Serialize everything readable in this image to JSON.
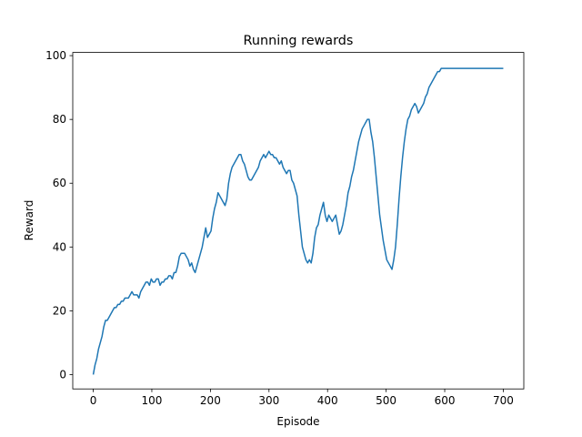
{
  "chart_data": {
    "type": "line",
    "title": "Running rewards",
    "xlabel": "Episode",
    "ylabel": "Reward",
    "xlim": [
      -35,
      735
    ],
    "ylim": [
      -4.5,
      101
    ],
    "xticks": [
      0,
      100,
      200,
      300,
      400,
      500,
      600,
      700
    ],
    "yticks": [
      0,
      20,
      40,
      60,
      80,
      100
    ],
    "grid": false,
    "legend": "none",
    "color": "#1f77b4",
    "series": [
      {
        "points": [
          [
            0,
            0
          ],
          [
            3,
            3
          ],
          [
            6,
            5
          ],
          [
            9,
            8
          ],
          [
            12,
            10
          ],
          [
            15,
            12
          ],
          [
            18,
            15
          ],
          [
            21,
            17
          ],
          [
            24,
            17
          ],
          [
            27,
            18
          ],
          [
            30,
            19
          ],
          [
            33,
            20
          ],
          [
            36,
            21
          ],
          [
            39,
            21
          ],
          [
            42,
            22
          ],
          [
            45,
            22
          ],
          [
            48,
            23
          ],
          [
            51,
            23
          ],
          [
            54,
            24
          ],
          [
            57,
            24
          ],
          [
            60,
            24
          ],
          [
            63,
            25
          ],
          [
            66,
            26
          ],
          [
            69,
            25
          ],
          [
            72,
            25
          ],
          [
            75,
            25
          ],
          [
            78,
            24
          ],
          [
            81,
            26
          ],
          [
            84,
            27
          ],
          [
            87,
            28
          ],
          [
            90,
            29
          ],
          [
            93,
            29
          ],
          [
            96,
            28
          ],
          [
            99,
            30
          ],
          [
            102,
            29
          ],
          [
            105,
            29
          ],
          [
            108,
            30
          ],
          [
            111,
            30
          ],
          [
            114,
            28
          ],
          [
            117,
            29
          ],
          [
            120,
            29
          ],
          [
            123,
            30
          ],
          [
            126,
            30
          ],
          [
            129,
            31
          ],
          [
            132,
            31
          ],
          [
            135,
            30
          ],
          [
            138,
            32
          ],
          [
            141,
            32
          ],
          [
            144,
            34
          ],
          [
            147,
            37
          ],
          [
            150,
            38
          ],
          [
            153,
            38
          ],
          [
            156,
            38
          ],
          [
            159,
            37
          ],
          [
            162,
            36
          ],
          [
            165,
            34
          ],
          [
            168,
            35
          ],
          [
            171,
            33
          ],
          [
            174,
            32
          ],
          [
            177,
            34
          ],
          [
            180,
            36
          ],
          [
            183,
            38
          ],
          [
            186,
            40
          ],
          [
            189,
            43
          ],
          [
            192,
            46
          ],
          [
            195,
            43
          ],
          [
            198,
            44
          ],
          [
            201,
            45
          ],
          [
            204,
            49
          ],
          [
            207,
            52
          ],
          [
            210,
            54
          ],
          [
            213,
            57
          ],
          [
            216,
            56
          ],
          [
            219,
            55
          ],
          [
            222,
            54
          ],
          [
            225,
            53
          ],
          [
            228,
            55
          ],
          [
            231,
            60
          ],
          [
            234,
            63
          ],
          [
            237,
            65
          ],
          [
            240,
            66
          ],
          [
            243,
            67
          ],
          [
            246,
            68
          ],
          [
            249,
            69
          ],
          [
            252,
            69
          ],
          [
            255,
            67
          ],
          [
            258,
            66
          ],
          [
            261,
            64
          ],
          [
            264,
            62
          ],
          [
            267,
            61
          ],
          [
            270,
            61
          ],
          [
            273,
            62
          ],
          [
            276,
            63
          ],
          [
            279,
            64
          ],
          [
            282,
            65
          ],
          [
            285,
            67
          ],
          [
            288,
            68
          ],
          [
            291,
            69
          ],
          [
            294,
            68
          ],
          [
            297,
            69
          ],
          [
            300,
            70
          ],
          [
            303,
            69
          ],
          [
            306,
            69
          ],
          [
            309,
            68
          ],
          [
            312,
            68
          ],
          [
            315,
            67
          ],
          [
            318,
            66
          ],
          [
            321,
            67
          ],
          [
            324,
            65
          ],
          [
            327,
            64
          ],
          [
            330,
            63
          ],
          [
            333,
            64
          ],
          [
            336,
            64
          ],
          [
            339,
            61
          ],
          [
            342,
            60
          ],
          [
            345,
            58
          ],
          [
            348,
            56
          ],
          [
            351,
            50
          ],
          [
            354,
            45
          ],
          [
            357,
            40
          ],
          [
            360,
            38
          ],
          [
            363,
            36
          ],
          [
            366,
            35
          ],
          [
            369,
            36
          ],
          [
            372,
            35
          ],
          [
            375,
            38
          ],
          [
            378,
            43
          ],
          [
            381,
            46
          ],
          [
            384,
            47
          ],
          [
            387,
            50
          ],
          [
            390,
            52
          ],
          [
            393,
            54
          ],
          [
            396,
            50
          ],
          [
            399,
            48
          ],
          [
            402,
            50
          ],
          [
            405,
            49
          ],
          [
            408,
            48
          ],
          [
            411,
            49
          ],
          [
            414,
            50
          ],
          [
            417,
            47
          ],
          [
            420,
            44
          ],
          [
            423,
            45
          ],
          [
            426,
            47
          ],
          [
            429,
            50
          ],
          [
            432,
            53
          ],
          [
            435,
            57
          ],
          [
            438,
            59
          ],
          [
            441,
            62
          ],
          [
            444,
            64
          ],
          [
            447,
            67
          ],
          [
            450,
            70
          ],
          [
            453,
            73
          ],
          [
            456,
            75
          ],
          [
            459,
            77
          ],
          [
            462,
            78
          ],
          [
            465,
            79
          ],
          [
            468,
            80
          ],
          [
            471,
            80
          ],
          [
            474,
            76
          ],
          [
            477,
            73
          ],
          [
            480,
            68
          ],
          [
            483,
            62
          ],
          [
            486,
            56
          ],
          [
            489,
            50
          ],
          [
            492,
            46
          ],
          [
            495,
            42
          ],
          [
            498,
            39
          ],
          [
            501,
            36
          ],
          [
            504,
            35
          ],
          [
            507,
            34
          ],
          [
            510,
            33
          ],
          [
            513,
            36
          ],
          [
            516,
            40
          ],
          [
            519,
            47
          ],
          [
            522,
            55
          ],
          [
            525,
            62
          ],
          [
            528,
            68
          ],
          [
            531,
            73
          ],
          [
            534,
            77
          ],
          [
            537,
            80
          ],
          [
            540,
            81
          ],
          [
            543,
            83
          ],
          [
            546,
            84
          ],
          [
            549,
            85
          ],
          [
            552,
            84
          ],
          [
            555,
            82
          ],
          [
            558,
            83
          ],
          [
            561,
            84
          ],
          [
            564,
            85
          ],
          [
            567,
            87
          ],
          [
            570,
            88
          ],
          [
            573,
            90
          ],
          [
            576,
            91
          ],
          [
            579,
            92
          ],
          [
            582,
            93
          ],
          [
            585,
            94
          ],
          [
            588,
            95
          ],
          [
            591,
            95
          ],
          [
            594,
            96
          ],
          [
            597,
            96
          ],
          [
            700,
            96
          ]
        ]
      }
    ]
  }
}
